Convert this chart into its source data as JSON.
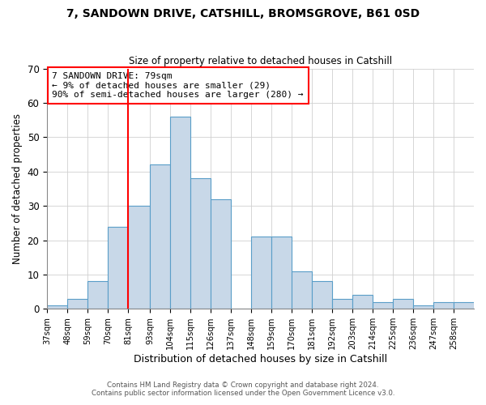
{
  "title_line1": "7, SANDOWN DRIVE, CATSHILL, BROMSGROVE, B61 0SD",
  "title_line2": "Size of property relative to detached houses in Catshill",
  "xlabel": "Distribution of detached houses by size in Catshill",
  "ylabel": "Number of detached properties",
  "bin_labels": [
    "37sqm",
    "48sqm",
    "59sqm",
    "70sqm",
    "81sqm",
    "93sqm",
    "104sqm",
    "115sqm",
    "126sqm",
    "137sqm",
    "148sqm",
    "159sqm",
    "170sqm",
    "181sqm",
    "192sqm",
    "203sqm",
    "214sqm",
    "225sqm",
    "236sqm",
    "247sqm",
    "258sqm"
  ],
  "bin_edges": [
    37,
    48,
    59,
    70,
    81,
    93,
    104,
    115,
    126,
    137,
    148,
    159,
    170,
    181,
    192,
    203,
    214,
    225,
    236,
    247,
    258,
    269
  ],
  "bar_heights": [
    1,
    3,
    8,
    24,
    30,
    42,
    56,
    38,
    32,
    0,
    21,
    21,
    11,
    8,
    3,
    4,
    2,
    3,
    1,
    2,
    2
  ],
  "bar_color": "#c8d8e8",
  "bar_edge_color": "#5a9ec8",
  "red_line_x": 81,
  "annotation_text": "7 SANDOWN DRIVE: 79sqm\n← 9% of detached houses are smaller (29)\n90% of semi-detached houses are larger (280) →",
  "annotation_box_color": "white",
  "annotation_box_edge_color": "red",
  "ylim": [
    0,
    70
  ],
  "yticks": [
    0,
    10,
    20,
    30,
    40,
    50,
    60,
    70
  ],
  "footer_line1": "Contains HM Land Registry data © Crown copyright and database right 2024.",
  "footer_line2": "Contains public sector information licensed under the Open Government Licence v3.0."
}
